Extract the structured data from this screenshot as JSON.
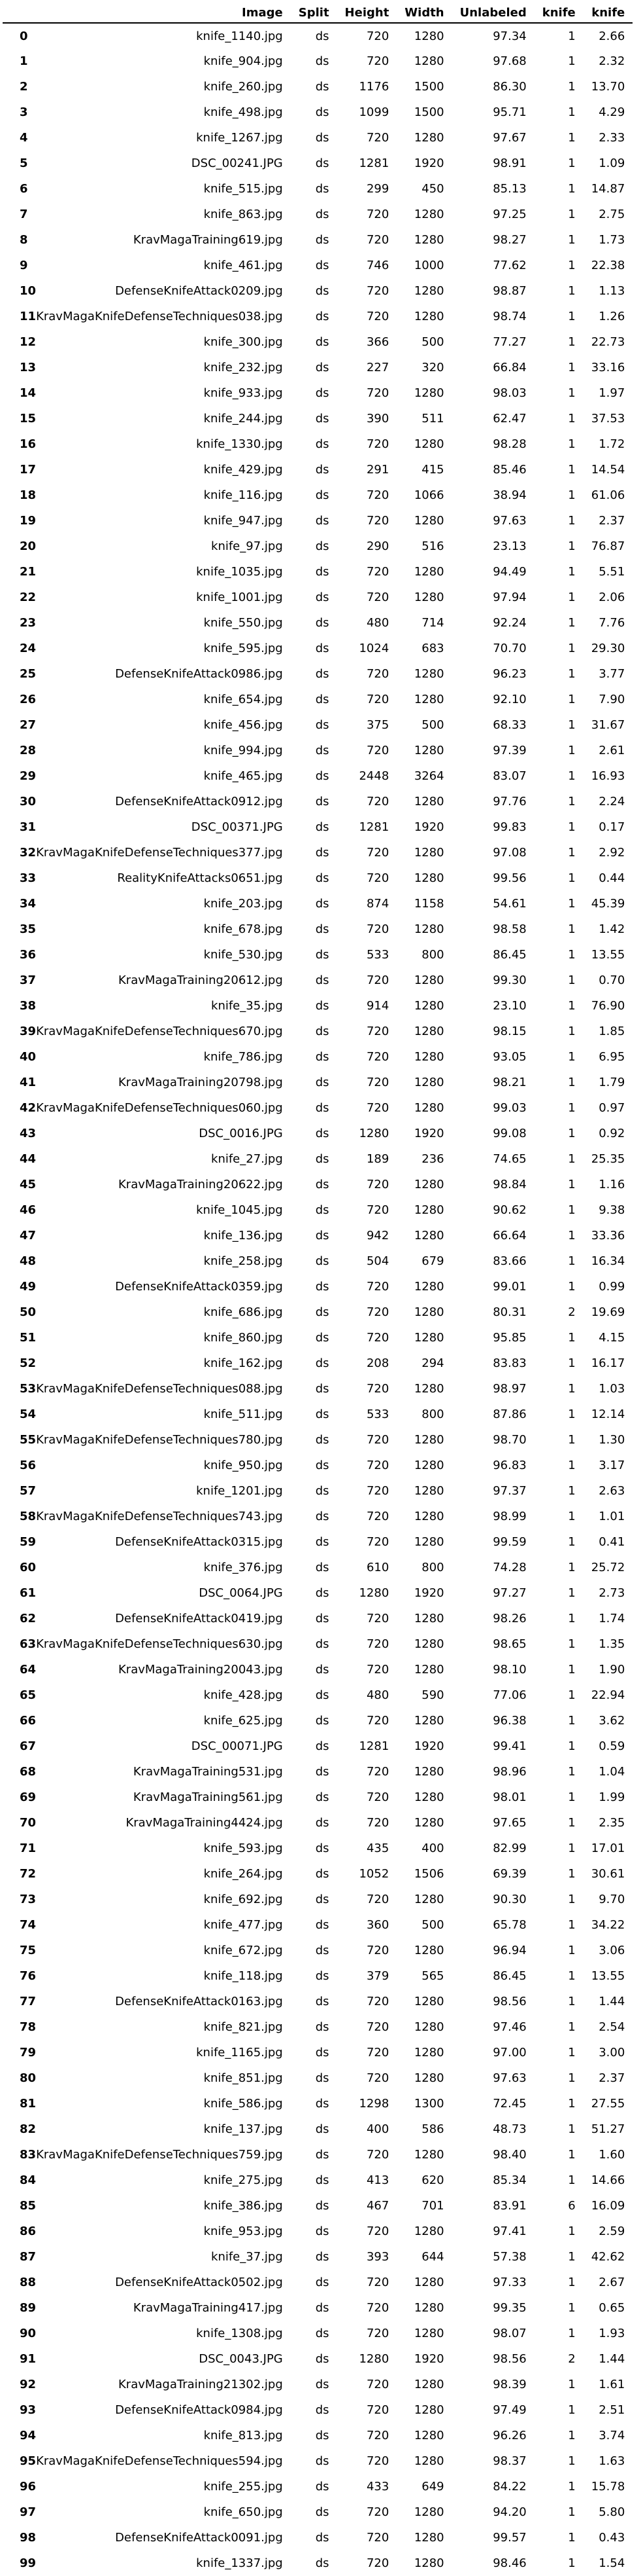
{
  "columns": [
    "",
    "Image",
    "Split",
    "Height",
    "Width",
    "Unlabeled",
    "knife",
    "knife"
  ],
  "rows": [
    [
      "0",
      "knife_1140.jpg",
      "ds",
      "720",
      "1280",
      "97.34",
      "1",
      "2.66"
    ],
    [
      "1",
      "knife_904.jpg",
      "ds",
      "720",
      "1280",
      "97.68",
      "1",
      "2.32"
    ],
    [
      "2",
      "knife_260.jpg",
      "ds",
      "1176",
      "1500",
      "86.30",
      "1",
      "13.70"
    ],
    [
      "3",
      "knife_498.jpg",
      "ds",
      "1099",
      "1500",
      "95.71",
      "1",
      "4.29"
    ],
    [
      "4",
      "knife_1267.jpg",
      "ds",
      "720",
      "1280",
      "97.67",
      "1",
      "2.33"
    ],
    [
      "5",
      "DSC_00241.JPG",
      "ds",
      "1281",
      "1920",
      "98.91",
      "1",
      "1.09"
    ],
    [
      "6",
      "knife_515.jpg",
      "ds",
      "299",
      "450",
      "85.13",
      "1",
      "14.87"
    ],
    [
      "7",
      "knife_863.jpg",
      "ds",
      "720",
      "1280",
      "97.25",
      "1",
      "2.75"
    ],
    [
      "8",
      "KravMagaTraining619.jpg",
      "ds",
      "720",
      "1280",
      "98.27",
      "1",
      "1.73"
    ],
    [
      "9",
      "knife_461.jpg",
      "ds",
      "746",
      "1000",
      "77.62",
      "1",
      "22.38"
    ],
    [
      "10",
      "DefenseKnifeAttack0209.jpg",
      "ds",
      "720",
      "1280",
      "98.87",
      "1",
      "1.13"
    ],
    [
      "11",
      "KravMagaKnifeDefenseTechniques038.jpg",
      "ds",
      "720",
      "1280",
      "98.74",
      "1",
      "1.26"
    ],
    [
      "12",
      "knife_300.jpg",
      "ds",
      "366",
      "500",
      "77.27",
      "1",
      "22.73"
    ],
    [
      "13",
      "knife_232.jpg",
      "ds",
      "227",
      "320",
      "66.84",
      "1",
      "33.16"
    ],
    [
      "14",
      "knife_933.jpg",
      "ds",
      "720",
      "1280",
      "98.03",
      "1",
      "1.97"
    ],
    [
      "15",
      "knife_244.jpg",
      "ds",
      "390",
      "511",
      "62.47",
      "1",
      "37.53"
    ],
    [
      "16",
      "knife_1330.jpg",
      "ds",
      "720",
      "1280",
      "98.28",
      "1",
      "1.72"
    ],
    [
      "17",
      "knife_429.jpg",
      "ds",
      "291",
      "415",
      "85.46",
      "1",
      "14.54"
    ],
    [
      "18",
      "knife_116.jpg",
      "ds",
      "720",
      "1066",
      "38.94",
      "1",
      "61.06"
    ],
    [
      "19",
      "knife_947.jpg",
      "ds",
      "720",
      "1280",
      "97.63",
      "1",
      "2.37"
    ],
    [
      "20",
      "knife_97.jpg",
      "ds",
      "290",
      "516",
      "23.13",
      "1",
      "76.87"
    ],
    [
      "21",
      "knife_1035.jpg",
      "ds",
      "720",
      "1280",
      "94.49",
      "1",
      "5.51"
    ],
    [
      "22",
      "knife_1001.jpg",
      "ds",
      "720",
      "1280",
      "97.94",
      "1",
      "2.06"
    ],
    [
      "23",
      "knife_550.jpg",
      "ds",
      "480",
      "714",
      "92.24",
      "1",
      "7.76"
    ],
    [
      "24",
      "knife_595.jpg",
      "ds",
      "1024",
      "683",
      "70.70",
      "1",
      "29.30"
    ],
    [
      "25",
      "DefenseKnifeAttack0986.jpg",
      "ds",
      "720",
      "1280",
      "96.23",
      "1",
      "3.77"
    ],
    [
      "26",
      "knife_654.jpg",
      "ds",
      "720",
      "1280",
      "92.10",
      "1",
      "7.90"
    ],
    [
      "27",
      "knife_456.jpg",
      "ds",
      "375",
      "500",
      "68.33",
      "1",
      "31.67"
    ],
    [
      "28",
      "knife_994.jpg",
      "ds",
      "720",
      "1280",
      "97.39",
      "1",
      "2.61"
    ],
    [
      "29",
      "knife_465.jpg",
      "ds",
      "2448",
      "3264",
      "83.07",
      "1",
      "16.93"
    ],
    [
      "30",
      "DefenseKnifeAttack0912.jpg",
      "ds",
      "720",
      "1280",
      "97.76",
      "1",
      "2.24"
    ],
    [
      "31",
      "DSC_00371.JPG",
      "ds",
      "1281",
      "1920",
      "99.83",
      "1",
      "0.17"
    ],
    [
      "32",
      "KravMagaKnifeDefenseTechniques377.jpg",
      "ds",
      "720",
      "1280",
      "97.08",
      "1",
      "2.92"
    ],
    [
      "33",
      "RealityKnifeAttacks0651.jpg",
      "ds",
      "720",
      "1280",
      "99.56",
      "1",
      "0.44"
    ],
    [
      "34",
      "knife_203.jpg",
      "ds",
      "874",
      "1158",
      "54.61",
      "1",
      "45.39"
    ],
    [
      "35",
      "knife_678.jpg",
      "ds",
      "720",
      "1280",
      "98.58",
      "1",
      "1.42"
    ],
    [
      "36",
      "knife_530.jpg",
      "ds",
      "533",
      "800",
      "86.45",
      "1",
      "13.55"
    ],
    [
      "37",
      "KravMagaTraining20612.jpg",
      "ds",
      "720",
      "1280",
      "99.30",
      "1",
      "0.70"
    ],
    [
      "38",
      "knife_35.jpg",
      "ds",
      "914",
      "1280",
      "23.10",
      "1",
      "76.90"
    ],
    [
      "39",
      "KravMagaKnifeDefenseTechniques670.jpg",
      "ds",
      "720",
      "1280",
      "98.15",
      "1",
      "1.85"
    ],
    [
      "40",
      "knife_786.jpg",
      "ds",
      "720",
      "1280",
      "93.05",
      "1",
      "6.95"
    ],
    [
      "41",
      "KravMagaTraining20798.jpg",
      "ds",
      "720",
      "1280",
      "98.21",
      "1",
      "1.79"
    ],
    [
      "42",
      "KravMagaKnifeDefenseTechniques060.jpg",
      "ds",
      "720",
      "1280",
      "99.03",
      "1",
      "0.97"
    ],
    [
      "43",
      "DSC_0016.JPG",
      "ds",
      "1280",
      "1920",
      "99.08",
      "1",
      "0.92"
    ],
    [
      "44",
      "knife_27.jpg",
      "ds",
      "189",
      "236",
      "74.65",
      "1",
      "25.35"
    ],
    [
      "45",
      "KravMagaTraining20622.jpg",
      "ds",
      "720",
      "1280",
      "98.84",
      "1",
      "1.16"
    ],
    [
      "46",
      "knife_1045.jpg",
      "ds",
      "720",
      "1280",
      "90.62",
      "1",
      "9.38"
    ],
    [
      "47",
      "knife_136.jpg",
      "ds",
      "942",
      "1280",
      "66.64",
      "1",
      "33.36"
    ],
    [
      "48",
      "knife_258.jpg",
      "ds",
      "504",
      "679",
      "83.66",
      "1",
      "16.34"
    ],
    [
      "49",
      "DefenseKnifeAttack0359.jpg",
      "ds",
      "720",
      "1280",
      "99.01",
      "1",
      "0.99"
    ],
    [
      "50",
      "knife_686.jpg",
      "ds",
      "720",
      "1280",
      "80.31",
      "2",
      "19.69"
    ],
    [
      "51",
      "knife_860.jpg",
      "ds",
      "720",
      "1280",
      "95.85",
      "1",
      "4.15"
    ],
    [
      "52",
      "knife_162.jpg",
      "ds",
      "208",
      "294",
      "83.83",
      "1",
      "16.17"
    ],
    [
      "53",
      "KravMagaKnifeDefenseTechniques088.jpg",
      "ds",
      "720",
      "1280",
      "98.97",
      "1",
      "1.03"
    ],
    [
      "54",
      "knife_511.jpg",
      "ds",
      "533",
      "800",
      "87.86",
      "1",
      "12.14"
    ],
    [
      "55",
      "KravMagaKnifeDefenseTechniques780.jpg",
      "ds",
      "720",
      "1280",
      "98.70",
      "1",
      "1.30"
    ],
    [
      "56",
      "knife_950.jpg",
      "ds",
      "720",
      "1280",
      "96.83",
      "1",
      "3.17"
    ],
    [
      "57",
      "knife_1201.jpg",
      "ds",
      "720",
      "1280",
      "97.37",
      "1",
      "2.63"
    ],
    [
      "58",
      "KravMagaKnifeDefenseTechniques743.jpg",
      "ds",
      "720",
      "1280",
      "98.99",
      "1",
      "1.01"
    ],
    [
      "59",
      "DefenseKnifeAttack0315.jpg",
      "ds",
      "720",
      "1280",
      "99.59",
      "1",
      "0.41"
    ],
    [
      "60",
      "knife_376.jpg",
      "ds",
      "610",
      "800",
      "74.28",
      "1",
      "25.72"
    ],
    [
      "61",
      "DSC_0064.JPG",
      "ds",
      "1280",
      "1920",
      "97.27",
      "1",
      "2.73"
    ],
    [
      "62",
      "DefenseKnifeAttack0419.jpg",
      "ds",
      "720",
      "1280",
      "98.26",
      "1",
      "1.74"
    ],
    [
      "63",
      "KravMagaKnifeDefenseTechniques630.jpg",
      "ds",
      "720",
      "1280",
      "98.65",
      "1",
      "1.35"
    ],
    [
      "64",
      "KravMagaTraining20043.jpg",
      "ds",
      "720",
      "1280",
      "98.10",
      "1",
      "1.90"
    ],
    [
      "65",
      "knife_428.jpg",
      "ds",
      "480",
      "590",
      "77.06",
      "1",
      "22.94"
    ],
    [
      "66",
      "knife_625.jpg",
      "ds",
      "720",
      "1280",
      "96.38",
      "1",
      "3.62"
    ],
    [
      "67",
      "DSC_00071.JPG",
      "ds",
      "1281",
      "1920",
      "99.41",
      "1",
      "0.59"
    ],
    [
      "68",
      "KravMagaTraining531.jpg",
      "ds",
      "720",
      "1280",
      "98.96",
      "1",
      "1.04"
    ],
    [
      "69",
      "KravMagaTraining561.jpg",
      "ds",
      "720",
      "1280",
      "98.01",
      "1",
      "1.99"
    ],
    [
      "70",
      "KravMagaTraining4424.jpg",
      "ds",
      "720",
      "1280",
      "97.65",
      "1",
      "2.35"
    ],
    [
      "71",
      "knife_593.jpg",
      "ds",
      "435",
      "400",
      "82.99",
      "1",
      "17.01"
    ],
    [
      "72",
      "knife_264.jpg",
      "ds",
      "1052",
      "1506",
      "69.39",
      "1",
      "30.61"
    ],
    [
      "73",
      "knife_692.jpg",
      "ds",
      "720",
      "1280",
      "90.30",
      "1",
      "9.70"
    ],
    [
      "74",
      "knife_477.jpg",
      "ds",
      "360",
      "500",
      "65.78",
      "1",
      "34.22"
    ],
    [
      "75",
      "knife_672.jpg",
      "ds",
      "720",
      "1280",
      "96.94",
      "1",
      "3.06"
    ],
    [
      "76",
      "knife_118.jpg",
      "ds",
      "379",
      "565",
      "86.45",
      "1",
      "13.55"
    ],
    [
      "77",
      "DefenseKnifeAttack0163.jpg",
      "ds",
      "720",
      "1280",
      "98.56",
      "1",
      "1.44"
    ],
    [
      "78",
      "knife_821.jpg",
      "ds",
      "720",
      "1280",
      "97.46",
      "1",
      "2.54"
    ],
    [
      "79",
      "knife_1165.jpg",
      "ds",
      "720",
      "1280",
      "97.00",
      "1",
      "3.00"
    ],
    [
      "80",
      "knife_851.jpg",
      "ds",
      "720",
      "1280",
      "97.63",
      "1",
      "2.37"
    ],
    [
      "81",
      "knife_586.jpg",
      "ds",
      "1298",
      "1300",
      "72.45",
      "1",
      "27.55"
    ],
    [
      "82",
      "knife_137.jpg",
      "ds",
      "400",
      "586",
      "48.73",
      "1",
      "51.27"
    ],
    [
      "83",
      "KravMagaKnifeDefenseTechniques759.jpg",
      "ds",
      "720",
      "1280",
      "98.40",
      "1",
      "1.60"
    ],
    [
      "84",
      "knife_275.jpg",
      "ds",
      "413",
      "620",
      "85.34",
      "1",
      "14.66"
    ],
    [
      "85",
      "knife_386.jpg",
      "ds",
      "467",
      "701",
      "83.91",
      "6",
      "16.09"
    ],
    [
      "86",
      "knife_953.jpg",
      "ds",
      "720",
      "1280",
      "97.41",
      "1",
      "2.59"
    ],
    [
      "87",
      "knife_37.jpg",
      "ds",
      "393",
      "644",
      "57.38",
      "1",
      "42.62"
    ],
    [
      "88",
      "DefenseKnifeAttack0502.jpg",
      "ds",
      "720",
      "1280",
      "97.33",
      "1",
      "2.67"
    ],
    [
      "89",
      "KravMagaTraining417.jpg",
      "ds",
      "720",
      "1280",
      "99.35",
      "1",
      "0.65"
    ],
    [
      "90",
      "knife_1308.jpg",
      "ds",
      "720",
      "1280",
      "98.07",
      "1",
      "1.93"
    ],
    [
      "91",
      "DSC_0043.JPG",
      "ds",
      "1280",
      "1920",
      "98.56",
      "2",
      "1.44"
    ],
    [
      "92",
      "KravMagaTraining21302.jpg",
      "ds",
      "720",
      "1280",
      "98.39",
      "1",
      "1.61"
    ],
    [
      "93",
      "DefenseKnifeAttack0984.jpg",
      "ds",
      "720",
      "1280",
      "97.49",
      "1",
      "2.51"
    ],
    [
      "94",
      "knife_813.jpg",
      "ds",
      "720",
      "1280",
      "96.26",
      "1",
      "3.74"
    ],
    [
      "95",
      "KravMagaKnifeDefenseTechniques594.jpg",
      "ds",
      "720",
      "1280",
      "98.37",
      "1",
      "1.63"
    ],
    [
      "96",
      "knife_255.jpg",
      "ds",
      "433",
      "649",
      "84.22",
      "1",
      "15.78"
    ],
    [
      "97",
      "knife_650.jpg",
      "ds",
      "720",
      "1280",
      "94.20",
      "1",
      "5.80"
    ],
    [
      "98",
      "DefenseKnifeAttack0091.jpg",
      "ds",
      "720",
      "1280",
      "99.57",
      "1",
      "0.43"
    ],
    [
      "99",
      "knife_1337.jpg",
      "ds",
      "720",
      "1280",
      "98.46",
      "1",
      "1.54"
    ]
  ]
}
